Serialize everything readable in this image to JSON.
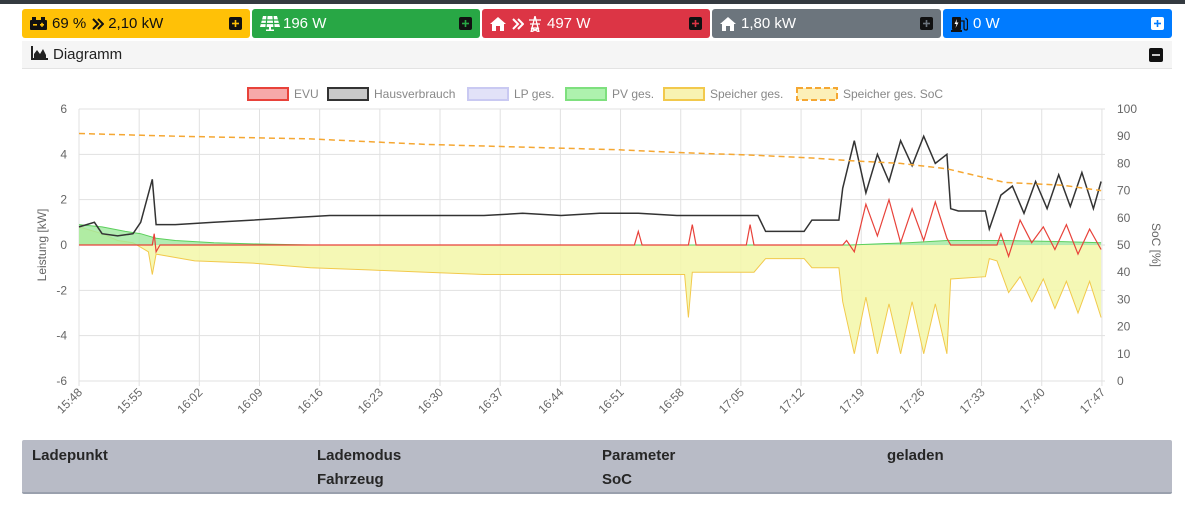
{
  "status_tiles": [
    {
      "value1": "69 %",
      "value2": "2,10 kW",
      "icon": "battery-car-icon"
    },
    {
      "value": "196 W",
      "icon": "solar-panel-icon"
    },
    {
      "value": "497 W",
      "icon": "house-to-grid-icon"
    },
    {
      "value": "1,80 kW",
      "icon": "house-icon"
    },
    {
      "value": "0 W",
      "icon": "charging-station-icon"
    }
  ],
  "diagram": {
    "title": "Diagramm"
  },
  "table": {
    "headers": [
      [
        "Ladepunkt",
        ""
      ],
      [
        "Lademodus",
        "Fahrzeug"
      ],
      [
        "Parameter",
        "SoC"
      ],
      [
        "geladen",
        ""
      ]
    ]
  },
  "chart_data": {
    "type": "area",
    "x_ticks": [
      "15:48",
      "15:55",
      "16:02",
      "16:09",
      "16:16",
      "16:23",
      "16:30",
      "16:37",
      "16:44",
      "16:51",
      "16:58",
      "17:05",
      "17:12",
      "17:19",
      "17:26",
      "17:33",
      "17:40",
      "17:47"
    ],
    "y_left": {
      "label": "Leistung [kW]",
      "range": [
        -6,
        6
      ],
      "ticks": [
        "-6",
        "-4",
        "-2",
        "0",
        "2",
        "4",
        "6"
      ]
    },
    "y_right": {
      "label": "SoC [%]",
      "range": [
        0,
        100
      ],
      "ticks": [
        "0",
        "10",
        "20",
        "30",
        "40",
        "50",
        "60",
        "70",
        "80",
        "90",
        "100"
      ]
    },
    "legend": {
      "position": "top",
      "entries": [
        "EVU",
        "Hausverbrauch",
        "LP ges.",
        "PV ges.",
        "Speicher ges.",
        "Speicher ges. SoC"
      ]
    },
    "grid": true,
    "colors": {
      "EVU": "#e8423a",
      "Hausverbrauch": "#333333",
      "LP ges.": "#c9c9f2",
      "PV ges.": "#7ee07e",
      "Speicher ges.": "#f2c94c",
      "Speicher ges. SoC": "#f5a732"
    },
    "series": [
      {
        "name": "Hausverbrauch",
        "points": [
          [
            0,
            0.8
          ],
          [
            2,
            0.9
          ],
          [
            4,
            1.0
          ],
          [
            6,
            0.5
          ],
          [
            10,
            0.4
          ],
          [
            14,
            0.5
          ],
          [
            16,
            1.0
          ],
          [
            19,
            2.9
          ],
          [
            20,
            0.9
          ],
          [
            25,
            0.9
          ],
          [
            35,
            1.0
          ],
          [
            45,
            1.1
          ],
          [
            55,
            1.2
          ],
          [
            65,
            1.3
          ],
          [
            75,
            1.3
          ],
          [
            85,
            1.3
          ],
          [
            95,
            1.3
          ],
          [
            105,
            1.3
          ],
          [
            115,
            1.4
          ],
          [
            125,
            1.3
          ],
          [
            135,
            1.4
          ],
          [
            145,
            1.4
          ],
          [
            155,
            1.3
          ],
          [
            165,
            1.3
          ],
          [
            176,
            1.3
          ],
          [
            178,
            0.6
          ],
          [
            188,
            0.6
          ],
          [
            190,
            1.1
          ],
          [
            197,
            1.1
          ],
          [
            198,
            2.5
          ],
          [
            201,
            4.6
          ],
          [
            204,
            2.3
          ],
          [
            207,
            4.0
          ],
          [
            210,
            2.8
          ],
          [
            213,
            4.6
          ],
          [
            216,
            3.5
          ],
          [
            219,
            4.8
          ],
          [
            222,
            3.6
          ],
          [
            225,
            4.0
          ],
          [
            226,
            1.6
          ],
          [
            228,
            1.5
          ],
          [
            235,
            1.5
          ],
          [
            236,
            0.7
          ],
          [
            239,
            2.2
          ],
          [
            242,
            2.6
          ],
          [
            245,
            1.4
          ],
          [
            248,
            2.8
          ],
          [
            251,
            1.6
          ],
          [
            254,
            3.1
          ],
          [
            257,
            1.7
          ],
          [
            260,
            3.2
          ],
          [
            263,
            1.6
          ],
          [
            265,
            2.8
          ]
        ]
      },
      {
        "name": "EVU",
        "points": [
          [
            0,
            0
          ],
          [
            19,
            0
          ],
          [
            19.5,
            0.5
          ],
          [
            20,
            -0.3
          ],
          [
            21,
            0
          ],
          [
            144,
            0
          ],
          [
            145,
            0.6
          ],
          [
            146,
            0
          ],
          [
            158,
            0
          ],
          [
            159,
            0.9
          ],
          [
            160,
            0
          ],
          [
            173,
            0
          ],
          [
            174,
            0.9
          ],
          [
            175,
            0
          ],
          [
            198,
            0
          ],
          [
            199,
            0.2
          ],
          [
            201,
            -0.3
          ],
          [
            204,
            1.8
          ],
          [
            207,
            0.4
          ],
          [
            210,
            2.0
          ],
          [
            213,
            0.1
          ],
          [
            216,
            1.6
          ],
          [
            219,
            0.2
          ],
          [
            222,
            1.9
          ],
          [
            225,
            0.3
          ],
          [
            226,
            0
          ],
          [
            238,
            0
          ],
          [
            239,
            0.5
          ],
          [
            241,
            -0.5
          ],
          [
            244,
            1.1
          ],
          [
            247,
            0.1
          ],
          [
            250,
            0.8
          ],
          [
            253,
            -0.2
          ],
          [
            256,
            0.9
          ],
          [
            259,
            -0.4
          ],
          [
            262,
            0.7
          ],
          [
            265,
            -0.2
          ]
        ]
      },
      {
        "name": "PV ges.",
        "points": [
          [
            0,
            0.9
          ],
          [
            6,
            0.8
          ],
          [
            12,
            0.6
          ],
          [
            16,
            0.5
          ],
          [
            20,
            0.3
          ],
          [
            25,
            0.2
          ],
          [
            35,
            0.1
          ],
          [
            45,
            0.05
          ],
          [
            60,
            0
          ],
          [
            200,
            0
          ],
          [
            215,
            0.1
          ],
          [
            225,
            0.2
          ],
          [
            240,
            0.2
          ],
          [
            255,
            0.15
          ],
          [
            265,
            0.1
          ]
        ]
      },
      {
        "name": "Speicher ges.",
        "points": [
          [
            0,
            0.8
          ],
          [
            6,
            0.5
          ],
          [
            10,
            0.2
          ],
          [
            14,
            0.1
          ],
          [
            18,
            -0.3
          ],
          [
            19,
            -1.3
          ],
          [
            20,
            -0.4
          ],
          [
            30,
            -0.7
          ],
          [
            45,
            -0.8
          ],
          [
            60,
            -1.0
          ],
          [
            75,
            -1.1
          ],
          [
            90,
            -1.2
          ],
          [
            105,
            -1.3
          ],
          [
            120,
            -1.3
          ],
          [
            135,
            -1.3
          ],
          [
            150,
            -1.3
          ],
          [
            157,
            -1.3
          ],
          [
            158,
            -3.2
          ],
          [
            159,
            -1.2
          ],
          [
            172,
            -1.2
          ],
          [
            173,
            -1.2
          ],
          [
            174,
            -1.2
          ],
          [
            175,
            -1.2
          ],
          [
            178,
            -0.6
          ],
          [
            188,
            -0.6
          ],
          [
            190,
            -1.0
          ],
          [
            197,
            -1.0
          ],
          [
            198,
            -2.5
          ],
          [
            201,
            -4.8
          ],
          [
            204,
            -2.3
          ],
          [
            207,
            -4.8
          ],
          [
            210,
            -2.6
          ],
          [
            213,
            -4.8
          ],
          [
            216,
            -2.5
          ],
          [
            219,
            -4.8
          ],
          [
            222,
            -2.6
          ],
          [
            225,
            -4.8
          ],
          [
            226,
            -1.5
          ],
          [
            235,
            -1.4
          ],
          [
            236,
            -0.6
          ],
          [
            238,
            -0.7
          ],
          [
            241,
            -2.1
          ],
          [
            244,
            -1.4
          ],
          [
            247,
            -2.5
          ],
          [
            250,
            -1.5
          ],
          [
            253,
            -2.8
          ],
          [
            256,
            -1.6
          ],
          [
            259,
            -3.0
          ],
          [
            262,
            -1.6
          ],
          [
            265,
            -3.2
          ]
        ]
      },
      {
        "name": "Speicher ges. SoC",
        "points": [
          [
            0,
            91
          ],
          [
            25,
            90
          ],
          [
            60,
            89
          ],
          [
            90,
            87
          ],
          [
            115,
            86
          ],
          [
            140,
            85
          ],
          [
            155,
            84
          ],
          [
            175,
            83
          ],
          [
            190,
            82
          ],
          [
            200,
            81
          ],
          [
            213,
            80
          ],
          [
            225,
            78
          ],
          [
            240,
            73
          ],
          [
            255,
            72
          ],
          [
            265,
            70
          ]
        ]
      }
    ]
  }
}
